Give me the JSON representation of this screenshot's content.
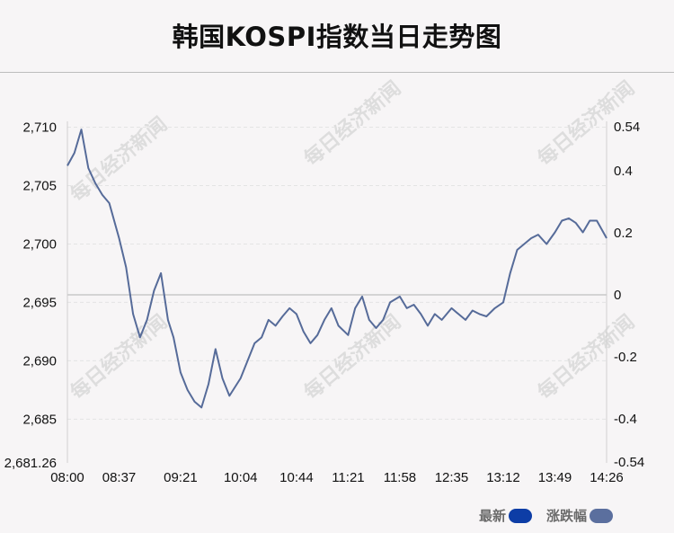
{
  "title": "韩国KOSPI指数当日走势图",
  "watermark": "每日经济新闻",
  "legend": [
    {
      "label": "最新",
      "color": "#0d3da6"
    },
    {
      "label": "涨跌幅",
      "color": "#5b6f9e"
    }
  ],
  "colors": {
    "line": "#566b99",
    "zero_line": "#c9c9c9",
    "grid": "#e4e4e4",
    "axis": "#d0d0d0"
  },
  "chart_data": {
    "type": "line",
    "x_ticks": [
      "08:00",
      "08:37",
      "09:21",
      "10:04",
      "10:44",
      "11:21",
      "11:58",
      "12:35",
      "13:12",
      "13:49",
      "14:26"
    ],
    "y_left_ticks": [
      "2,710",
      "2,705",
      "2,700",
      "2,695",
      "2,690",
      "2,685",
      "2,681.26"
    ],
    "y_right_ticks": [
      "0.54",
      "0.4",
      "0.2",
      "0",
      "-0.2",
      "-0.4",
      "-0.54"
    ],
    "ylim": [
      2681.26,
      2710.5
    ],
    "grid": true,
    "series": [
      {
        "name": "最新",
        "x": [
          "08:00",
          "08:05",
          "08:10",
          "08:15",
          "08:20",
          "08:25",
          "08:30",
          "08:37",
          "08:42",
          "08:47",
          "08:52",
          "08:57",
          "09:02",
          "09:07",
          "09:12",
          "09:16",
          "09:21",
          "09:26",
          "09:31",
          "09:36",
          "09:41",
          "09:46",
          "09:51",
          "09:56",
          "10:04",
          "10:09",
          "10:14",
          "10:19",
          "10:24",
          "10:29",
          "10:34",
          "10:39",
          "10:44",
          "10:49",
          "10:54",
          "10:59",
          "11:04",
          "11:09",
          "11:14",
          "11:21",
          "11:26",
          "11:31",
          "11:36",
          "11:41",
          "11:46",
          "11:51",
          "11:58",
          "12:03",
          "12:08",
          "12:13",
          "12:18",
          "12:23",
          "12:28",
          "12:35",
          "12:40",
          "12:45",
          "12:50",
          "12:55",
          "13:00",
          "13:06",
          "13:12",
          "13:17",
          "13:22",
          "13:27",
          "13:32",
          "13:37",
          "13:43",
          "13:49",
          "13:54",
          "13:59",
          "14:04",
          "14:09",
          "14:14",
          "14:19",
          "14:26"
        ],
        "values": [
          2706.7,
          2707.8,
          2709.8,
          2706.5,
          2705.2,
          2704.2,
          2703.5,
          2700.5,
          2698.0,
          2694.0,
          2692.0,
          2693.5,
          2696.0,
          2697.5,
          2693.5,
          2692.0,
          2689.0,
          2687.5,
          2686.5,
          2686.0,
          2688.0,
          2691.0,
          2688.5,
          2687.0,
          2688.5,
          2690.0,
          2691.5,
          2692.0,
          2693.5,
          2693.0,
          2693.8,
          2694.5,
          2694.0,
          2692.5,
          2691.5,
          2692.2,
          2693.5,
          2694.5,
          2693.0,
          2692.2,
          2694.5,
          2695.5,
          2693.5,
          2692.8,
          2693.5,
          2695.0,
          2695.5,
          2694.5,
          2694.8,
          2694.0,
          2693.0,
          2694.0,
          2693.5,
          2694.5,
          2694.0,
          2693.5,
          2694.3,
          2694.0,
          2693.8,
          2694.5,
          2695.0,
          2697.5,
          2699.5,
          2700.0,
          2700.5,
          2700.8,
          2700.0,
          2701.0,
          2702.0,
          2702.2,
          2701.8,
          2701.0,
          2702.0,
          2702.0,
          2700.5
        ]
      }
    ]
  }
}
